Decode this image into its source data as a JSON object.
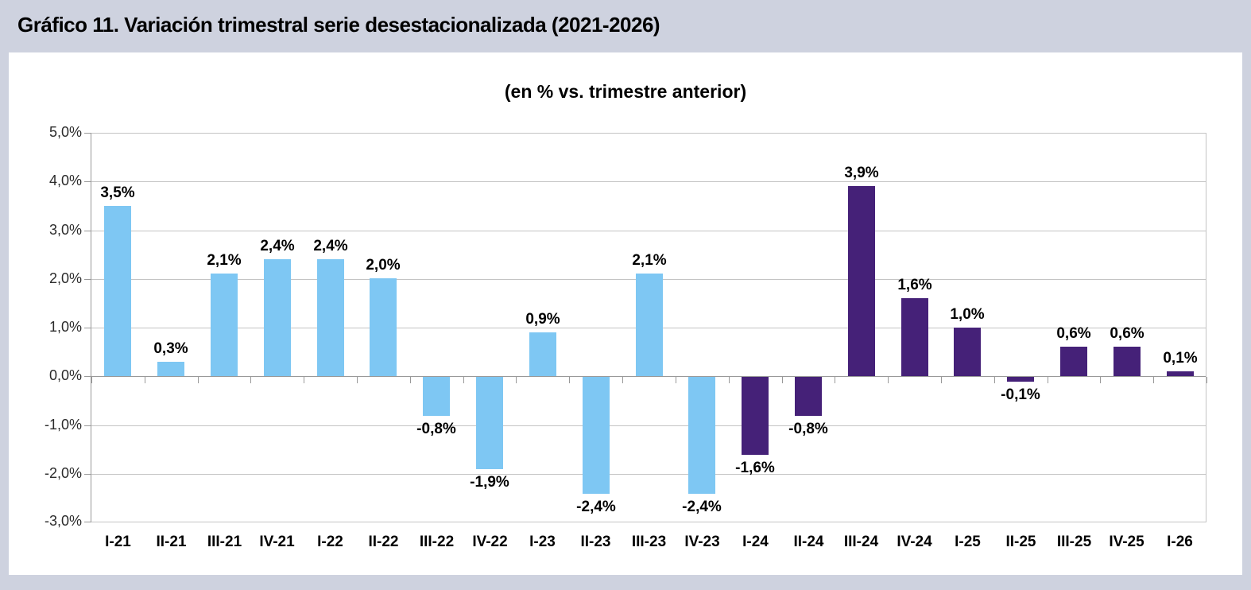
{
  "header": {
    "title": "Gráfico 11. Variación trimestral serie desestacionalizada (2021-2026)"
  },
  "chart_data": {
    "type": "bar",
    "title": "(en % vs. trimestre anterior)",
    "categories": [
      "I-21",
      "II-21",
      "III-21",
      "IV-21",
      "I-22",
      "II-22",
      "III-22",
      "IV-22",
      "I-23",
      "II-23",
      "III-23",
      "IV-23",
      "I-24",
      "II-24",
      "III-24",
      "IV-24",
      "I-25",
      "II-25",
      "III-25",
      "IV-25",
      "I-26"
    ],
    "values": [
      3.5,
      0.3,
      2.1,
      2.4,
      2.4,
      2.0,
      -0.8,
      -1.9,
      0.9,
      -2.4,
      2.1,
      -2.4,
      -1.6,
      -0.8,
      3.9,
      1.6,
      1.0,
      -0.1,
      0.6,
      0.6,
      0.1
    ],
    "value_labels": [
      "3,5%",
      "0,3%",
      "2,1%",
      "2,4%",
      "2,4%",
      "2,0%",
      "-0,8%",
      "-1,9%",
      "0,9%",
      "-2,4%",
      "2,1%",
      "-2,4%",
      "-1,6%",
      "-0,8%",
      "3,9%",
      "1,6%",
      "1,0%",
      "-0,1%",
      "0,6%",
      "0,6%",
      "0,1%"
    ],
    "bar_colors": [
      "#7EC7F3",
      "#7EC7F3",
      "#7EC7F3",
      "#7EC7F3",
      "#7EC7F3",
      "#7EC7F3",
      "#7EC7F3",
      "#7EC7F3",
      "#7EC7F3",
      "#7EC7F3",
      "#7EC7F3",
      "#7EC7F3",
      "#452178",
      "#452178",
      "#452178",
      "#452178",
      "#452178",
      "#452178",
      "#452178",
      "#452178",
      "#452178"
    ],
    "palette": {
      "light_blue": "#7EC7F3",
      "dark_purple": "#452178"
    },
    "y_tick_labels": [
      "5,0%",
      "4,0%",
      "3,0%",
      "2,0%",
      "1,0%",
      "0,0%",
      "-1,0%",
      "-2,0%",
      "-3,0%"
    ],
    "ylim": [
      -3.0,
      5.0
    ],
    "y_step": 1.0,
    "grid": true,
    "legend": "none"
  },
  "style": {
    "page_background": "#CED2DF",
    "panel_background": "#FFFFFF",
    "grid_color": "#C4C4C4",
    "axis_color": "#999999",
    "text_color": "#000000"
  }
}
